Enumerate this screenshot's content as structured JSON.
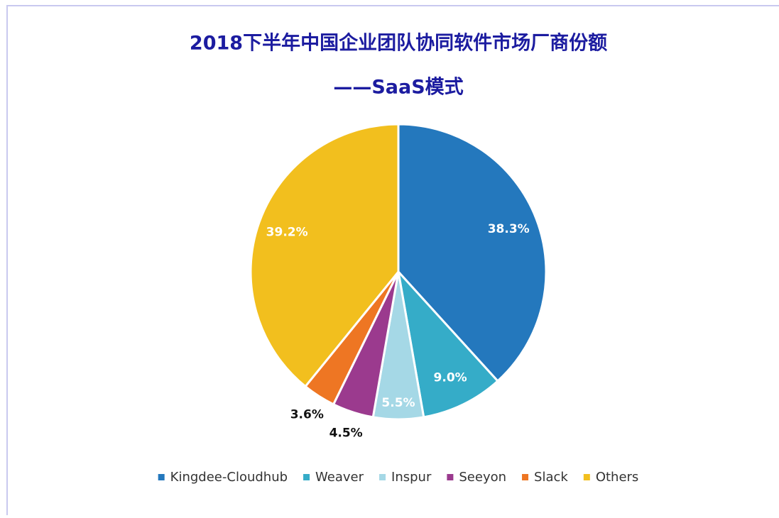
{
  "chart_data": {
    "type": "pie",
    "title": [
      "2018下半年中国企业团队协同软件市场厂商份额",
      "——SaaS模式"
    ],
    "categories": [
      "Kingdee-Cloudhub",
      "Weaver",
      "Inspur",
      "Seeyon",
      "Slack",
      "Others"
    ],
    "values": [
      38.3,
      9.0,
      5.5,
      4.5,
      3.6,
      39.2
    ],
    "value_labels": [
      "38.3%",
      "9.0%",
      "5.5%",
      "4.5%",
      "3.6%",
      "39.2%"
    ],
    "colors": [
      "#2478bd",
      "#35acc8",
      "#a5d8e6",
      "#9b3a8e",
      "#ee7623",
      "#f2bf1e"
    ],
    "legend": "bottom"
  }
}
